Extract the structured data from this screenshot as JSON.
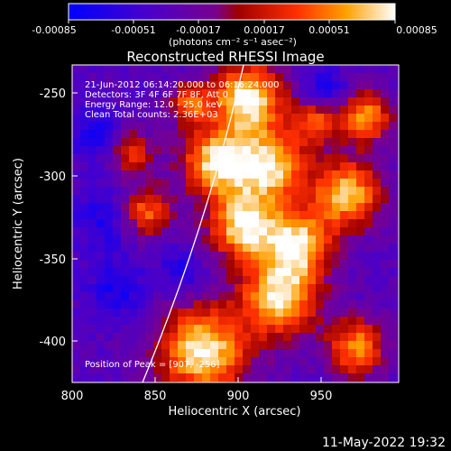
{
  "colorbar": {
    "tick_labels": [
      "-0.00085",
      "-0.00051",
      "-0.00017",
      "0.00017",
      "0.00051",
      "0.00085"
    ],
    "unit_label": "(photons cm⁻² s⁻¹ asec⁻²)"
  },
  "plot": {
    "title": "Reconstructed RHESSI Image",
    "xlabel": "Heliocentric X (arcsec)",
    "ylabel": "Heliocentric Y (arcsec)",
    "x_ticks": [
      "800",
      "850",
      "900",
      "950"
    ],
    "y_ticks": [
      "-250",
      "-300",
      "-350",
      "-400"
    ]
  },
  "annotations": {
    "time_range": "21-Jun-2012 06:14:20.000 to 06:16:24.000",
    "detectors": "Detectors: 3F 4F 6F 7F 8F, Att 0",
    "energy": "Energy Range: 12.0 - 25.0 keV",
    "method": "Clean    Total counts: 2.36E+03",
    "peak": "Position of Peak = [907, -256]"
  },
  "footer": {
    "date": "11-May-2022 19:32"
  },
  "colors": {
    "background": "#000000",
    "text": "#ffffff"
  }
}
